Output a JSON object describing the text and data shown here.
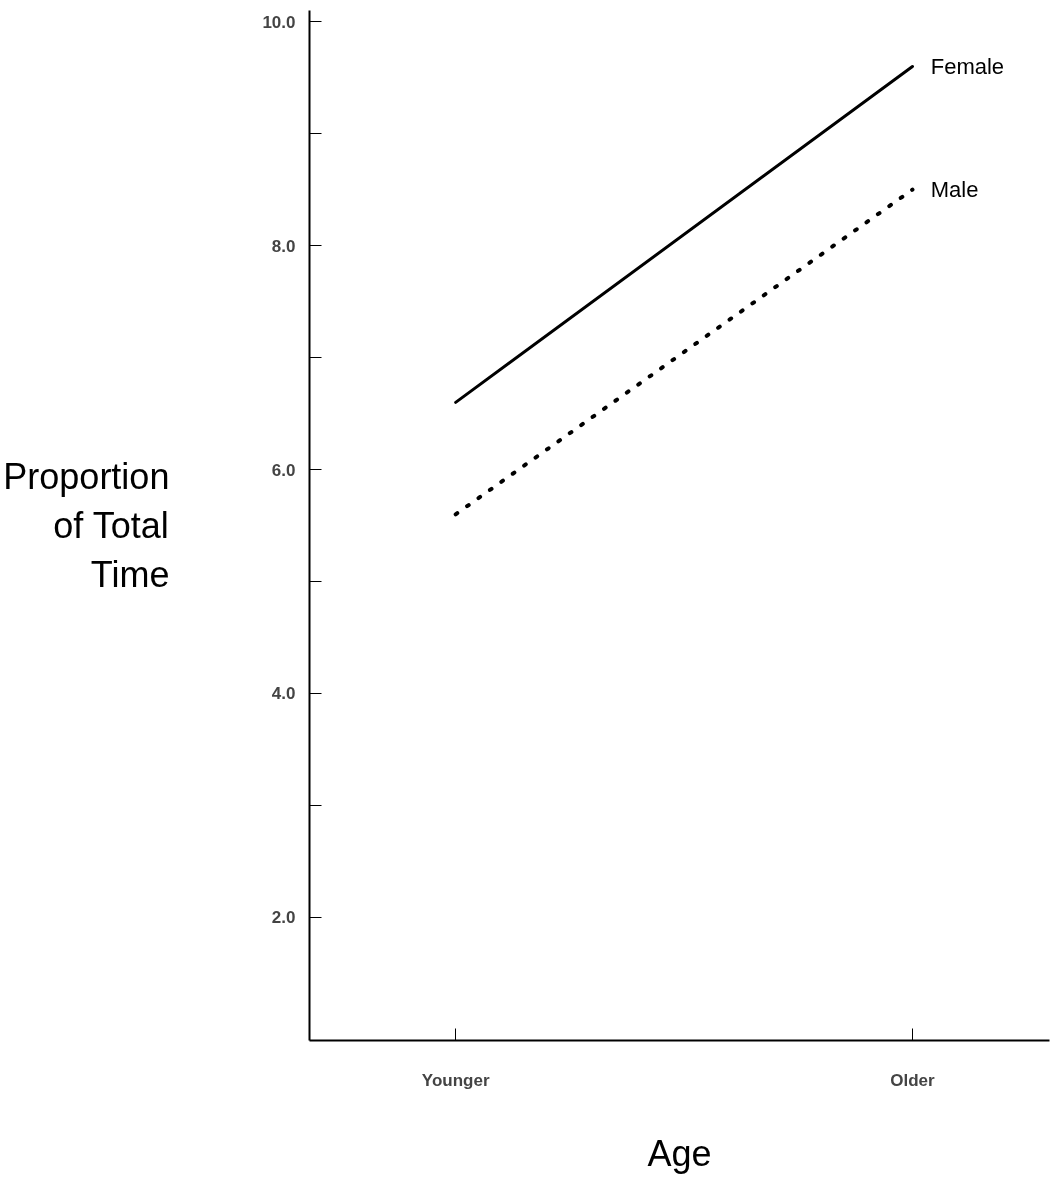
{
  "chart_data": {
    "type": "line",
    "xlabel": "Age",
    "ylabel": "Proportion of Total Time",
    "categories": [
      "Younger",
      "Older"
    ],
    "series": [
      {
        "name": "Female",
        "color": "#000000",
        "values": [
          6.6,
          9.6
        ],
        "line_style": "solid"
      },
      {
        "name": "Male",
        "color": "#000000",
        "values": [
          5.6,
          8.5
        ],
        "line_style": "dotted"
      }
    ],
    "ylim": [
      0.9,
      10.1
    ],
    "yticks": [
      {
        "value": 2,
        "label": "2.0"
      },
      {
        "value": 3,
        "label": null
      },
      {
        "value": 4,
        "label": "4.0"
      },
      {
        "value": 5,
        "label": null
      },
      {
        "value": 6,
        "label": "6.0"
      },
      {
        "value": 7,
        "label": null
      },
      {
        "value": 8,
        "label": "8.0"
      },
      {
        "value": 9,
        "label": null
      },
      {
        "value": 10,
        "label": "10.0"
      }
    ],
    "grid": false,
    "marker": "none"
  }
}
